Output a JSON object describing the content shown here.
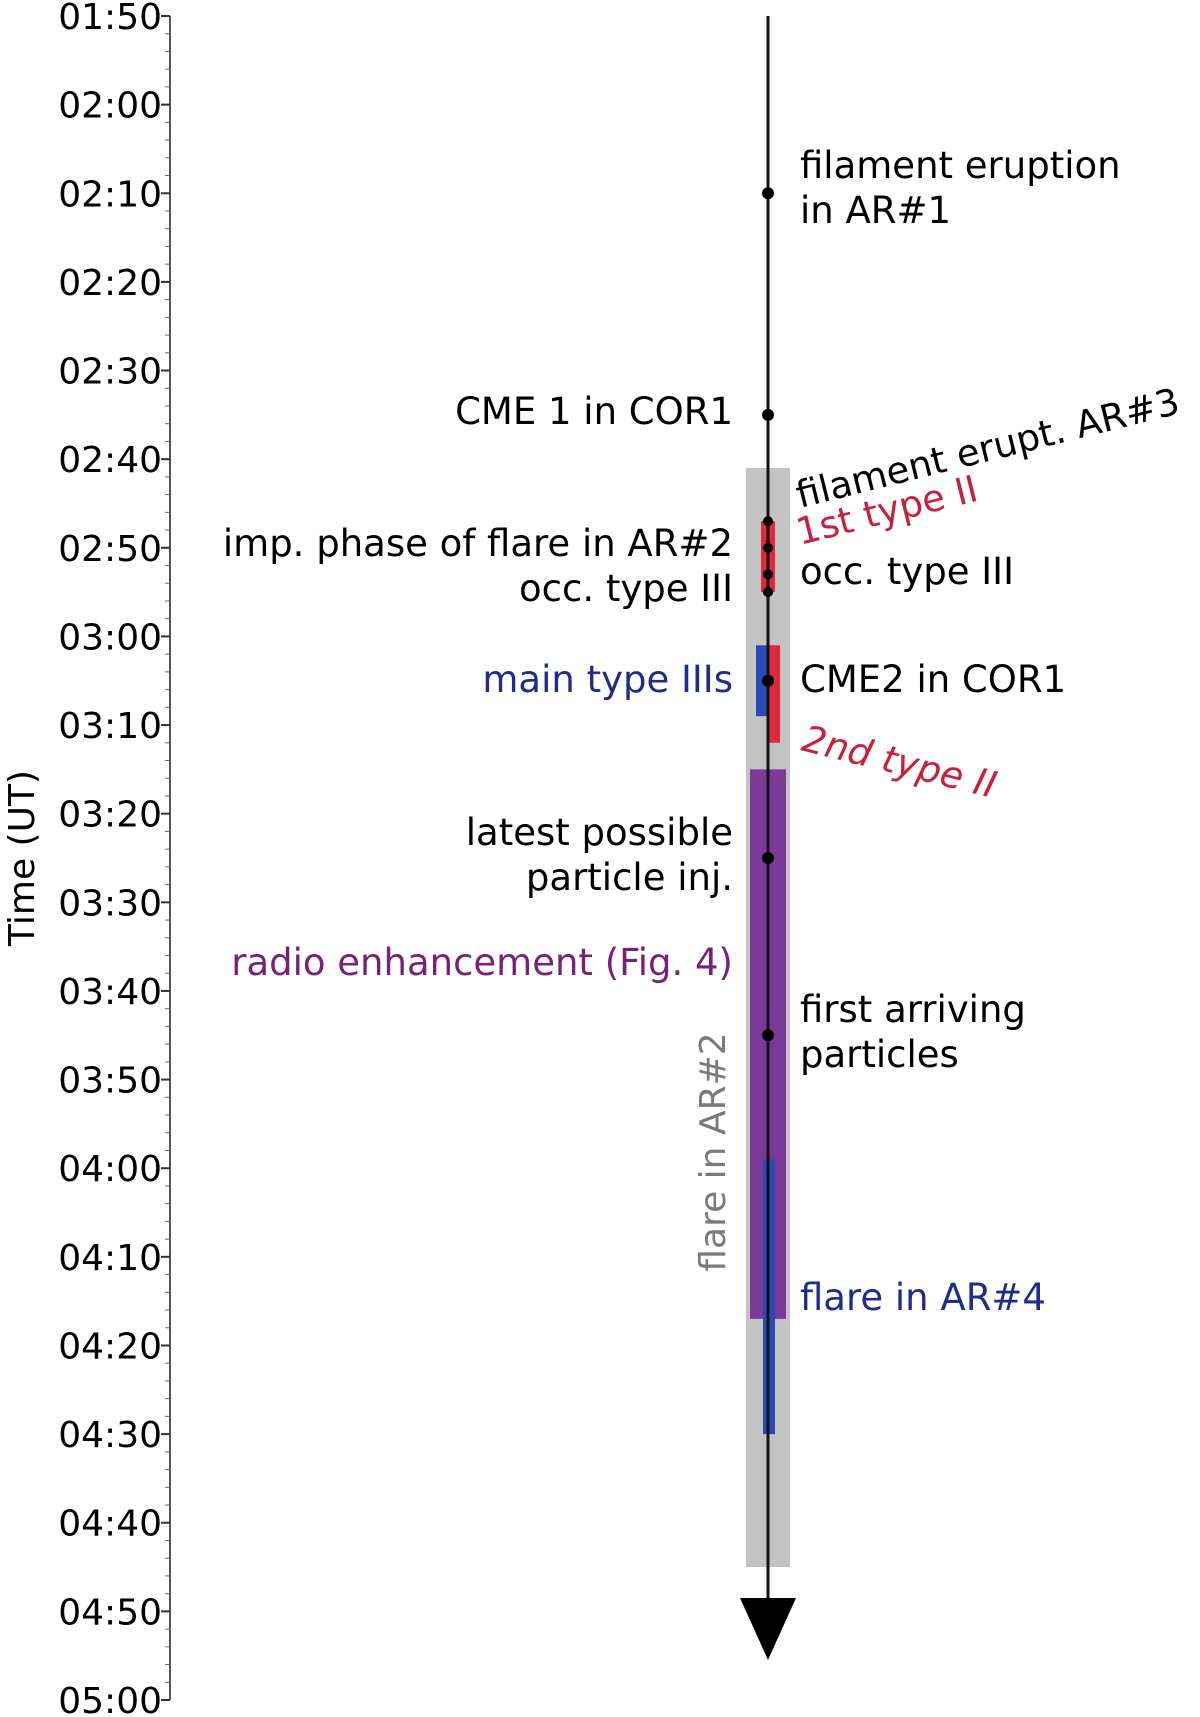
{
  "chart_data": {
    "type": "timeline",
    "ylabel": "Time (UT)",
    "ylim": [
      "01:50",
      "05:00"
    ],
    "ticks": [
      "01:50",
      "02:00",
      "02:10",
      "02:20",
      "02:30",
      "02:40",
      "02:50",
      "03:00",
      "03:10",
      "03:20",
      "03:30",
      "03:40",
      "03:50",
      "04:00",
      "04:10",
      "04:20",
      "04:30",
      "04:40",
      "04:50",
      "05:00"
    ],
    "intervals": [
      {
        "name": "flare in AR#2",
        "start": "02:41",
        "end": "04:45",
        "color": "#c0c0c0"
      },
      {
        "name": "1st type II",
        "start": "02:47",
        "end": "02:55",
        "color": "#e0283c"
      },
      {
        "name": "main type IIIs",
        "start": "03:01",
        "end": "03:09",
        "color": "#2a4bb5"
      },
      {
        "name": "2nd type II",
        "start": "03:01",
        "end": "03:12",
        "color": "#e0283c"
      },
      {
        "name": "radio enhancement (Fig. 4)",
        "start": "03:15",
        "end": "04:17",
        "color": "#7a3a9a"
      },
      {
        "name": "flare in AR#4",
        "start": "03:59",
        "end": "04:30",
        "color": "#2a4bb5"
      }
    ],
    "events": [
      {
        "time": "02:10",
        "lines": [
          "filament eruption",
          "in AR#1"
        ],
        "side": "right",
        "color": "#000000"
      },
      {
        "time": "02:35",
        "lines": [
          "CME 1 in COR1"
        ],
        "side": "left",
        "color": "#000000"
      },
      {
        "time": "02:47",
        "lines": [
          "filament erupt. AR#3"
        ],
        "side": "right",
        "color": "#000000"
      },
      {
        "time": "02:50",
        "lines": [
          "imp. phase of flare in AR#2",
          "occ. type III"
        ],
        "side": "left",
        "color": "#000000"
      },
      {
        "time": "02:53",
        "lines": [
          "occ. type III"
        ],
        "side": "right",
        "color": "#000000"
      },
      {
        "time": "03:05",
        "lines": [
          "CME2 in COR1"
        ],
        "side": "right",
        "color": "#000000"
      },
      {
        "time": "03:25",
        "lines": [
          "latest possible",
          "particle inj."
        ],
        "side": "left",
        "color": "#000000"
      },
      {
        "time": "03:45",
        "lines": [
          "first arriving",
          "particles"
        ],
        "side": "right",
        "color": "#000000"
      }
    ],
    "colored_labels": [
      {
        "text": "1st type II",
        "color": "#c8203a"
      },
      {
        "text": "2nd type II",
        "color": "#c8203a"
      },
      {
        "text": "main type IIIs",
        "color": "#1e2d8c"
      },
      {
        "text": "radio enhancement (Fig. 4)",
        "color": "#7a1f7a"
      },
      {
        "text": "flare in AR#4",
        "color": "#1e2d8c"
      },
      {
        "text": "flare in AR#2",
        "color": "#7a7a7a"
      }
    ],
    "extra_dots": [
      "02:47",
      "02:50",
      "02:53",
      "02:55"
    ]
  }
}
